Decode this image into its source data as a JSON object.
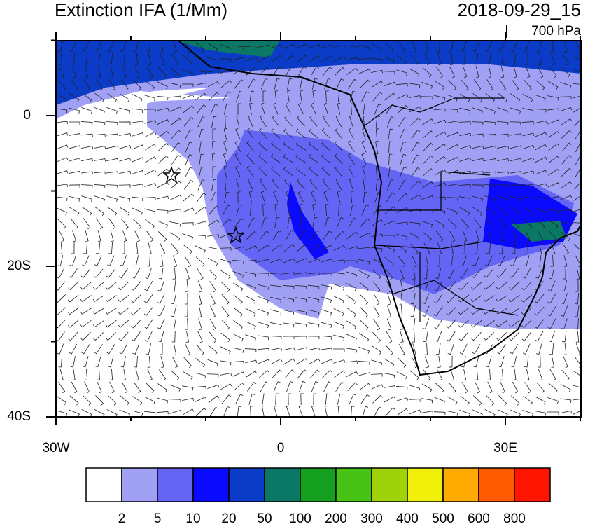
{
  "header": {
    "title": "Extinction IFA (1/Mm)",
    "date": "2018-09-29_15",
    "level": "700 hPa"
  },
  "axes": {
    "x_labels": [
      "30W",
      "0",
      "30E"
    ],
    "y_labels": [
      "0",
      "20S",
      "40S"
    ]
  },
  "colorbar": {
    "colors": [
      "#ffffff",
      "#a0a0f5",
      "#6464f5",
      "#0a0aff",
      "#0a3cc8",
      "#0a7864",
      "#14a01e",
      "#46c314",
      "#a0d20a",
      "#f0f00a",
      "#ffaa00",
      "#ff5a00",
      "#ff1400"
    ],
    "labels": [
      2,
      5,
      10,
      20,
      50,
      100,
      200,
      300,
      400,
      500,
      600,
      800
    ]
  }
}
